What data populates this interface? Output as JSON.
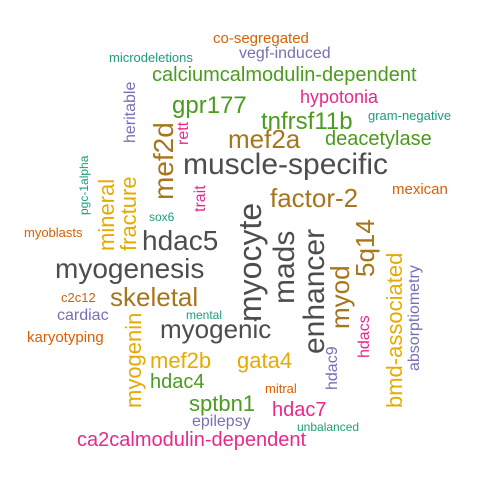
{
  "title": "",
  "colors": {
    "grey": "#4d4d4d",
    "green": "#4a9b1e",
    "brown": "#a6761d",
    "orange": "#d95f02",
    "purple": "#7570b3",
    "magenta": "#e7298a",
    "teal": "#1b9e77",
    "gold": "#e6ab02"
  },
  "words": {
    "co_segregated": "co-segregated",
    "vegf_induced": "vegf-induced",
    "microdeletions": "microdeletions",
    "calciumcalmodulin_dependent": "calciumcalmodulin-dependent",
    "gpr177": "gpr177",
    "hypotonia": "hypotonia",
    "gram_negative": "gram-negative",
    "heritable": "heritable",
    "rett": "rett",
    "tnfrsf11b": "tnfrsf11b",
    "mef2a": "mef2a",
    "deacetylase": "deacetylase",
    "mef2d": "mef2d",
    "muscle_specific": "muscle-specific",
    "pgc_1alpha": "pgc-1alpha",
    "trait": "trait",
    "factor_2": "factor-2",
    "mexican": "mexican",
    "fracture": "fracture",
    "mineral": "mineral",
    "sox6": "sox6",
    "myoblasts": "myoblasts",
    "hdac5": "hdac5",
    "myocyte": "myocyte",
    "mads": "mads",
    "enhancer": "enhancer",
    "5q14": "5q14",
    "myogenesis": "myogenesis",
    "absorptiometry": "absorptiometry",
    "myod": "myod",
    "bmd_associated": "bmd-associated",
    "c2c12": "c2c12",
    "skeletal": "skeletal",
    "cardiac": "cardiac",
    "mental": "mental",
    "myogenic": "myogenic",
    "hdacs": "hdacs",
    "karyotyping": "karyotyping",
    "myogenin": "myogenin",
    "hdac9": "hdac9",
    "mef2b": "mef2b",
    "gata4": "gata4",
    "hdac4": "hdac4",
    "mitral": "mitral",
    "sptbn1": "sptbn1",
    "hdac7": "hdac7",
    "epilepsy": "epilepsy",
    "unbalanced": "unbalanced",
    "ca2calmodulin_dependent": "ca2calmodulin-dependent"
  }
}
